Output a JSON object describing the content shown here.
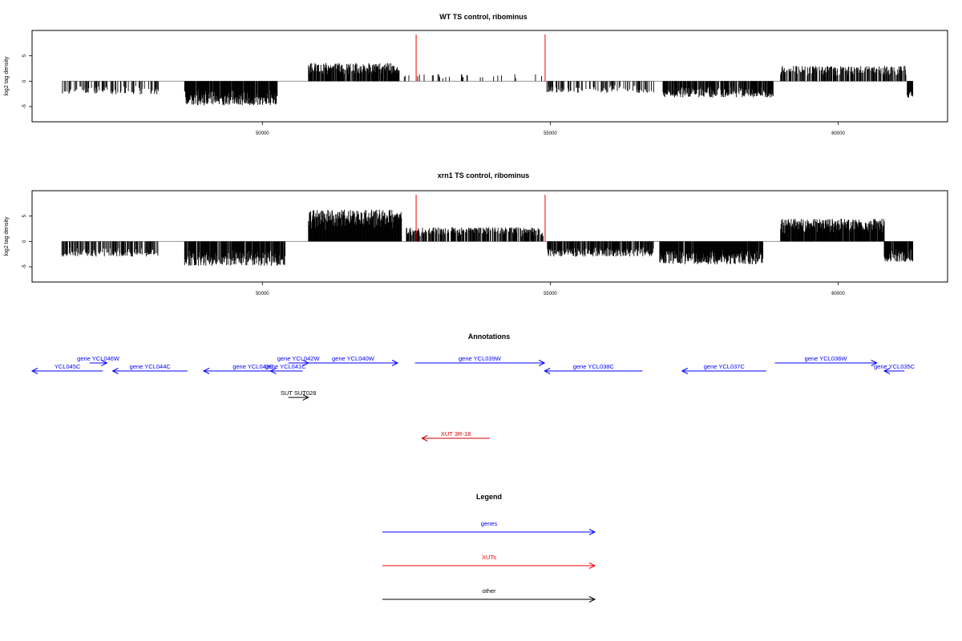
{
  "chart_data": [
    {
      "type": "bar",
      "title": "WT TS control, ribominus",
      "ylabel": "log2 tag density",
      "xlim": [
        46000,
        61900
      ],
      "ylim": [
        -8,
        10
      ],
      "x_ticks": [
        50000,
        55000,
        60000
      ],
      "y_ticks": [
        -5,
        0,
        5
      ],
      "markers": [
        52670,
        54910
      ],
      "marker_color": "#ff0000",
      "segments": [
        {
          "x0": 46520,
          "x1": 48200,
          "sign": -1,
          "amp": 2.6,
          "density": 0.35
        },
        {
          "x0": 48650,
          "x1": 50260,
          "sign": -1,
          "amp": 4.8,
          "density": 0.95
        },
        {
          "x0": 50800,
          "x1": 52380,
          "sign": 1,
          "amp": 3.6,
          "density": 0.9
        },
        {
          "x0": 52400,
          "x1": 54850,
          "sign": 1,
          "amp": 1.4,
          "density": 0.1
        },
        {
          "x0": 54940,
          "x1": 56800,
          "sign": -1,
          "amp": 2.3,
          "density": 0.35
        },
        {
          "x0": 56950,
          "x1": 58870,
          "sign": -1,
          "amp": 3.2,
          "density": 0.85
        },
        {
          "x0": 59000,
          "x1": 61200,
          "sign": 1,
          "amp": 3.0,
          "density": 0.65
        },
        {
          "x0": 61200,
          "x1": 61300,
          "sign": -1,
          "amp": 3.5,
          "density": 0.9
        }
      ]
    },
    {
      "type": "bar",
      "title": "xrn1 TS control, ribominus",
      "ylabel": "log2 tag density",
      "xlim": [
        46000,
        61900
      ],
      "ylim": [
        -8,
        10
      ],
      "x_ticks": [
        50000,
        55000,
        60000
      ],
      "y_ticks": [
        -5,
        0,
        5
      ],
      "markers": [
        52670,
        54910
      ],
      "marker_color": "#ff0000",
      "segments": [
        {
          "x0": 46520,
          "x1": 48200,
          "sign": -1,
          "amp": 3.0,
          "density": 0.55
        },
        {
          "x0": 48650,
          "x1": 50400,
          "sign": -1,
          "amp": 4.8,
          "density": 0.9
        },
        {
          "x0": 50800,
          "x1": 52420,
          "sign": 1,
          "amp": 6.3,
          "density": 1.0
        },
        {
          "x0": 52500,
          "x1": 54880,
          "sign": 1,
          "amp": 2.8,
          "density": 0.7
        },
        {
          "x0": 54950,
          "x1": 56800,
          "sign": -1,
          "amp": 3.0,
          "density": 0.8
        },
        {
          "x0": 56900,
          "x1": 58700,
          "sign": -1,
          "amp": 4.5,
          "density": 0.95
        },
        {
          "x0": 59000,
          "x1": 60800,
          "sign": 1,
          "amp": 4.5,
          "density": 0.95
        },
        {
          "x0": 60800,
          "x1": 61300,
          "sign": -1,
          "amp": 4.0,
          "density": 0.95
        }
      ]
    }
  ],
  "annotations": {
    "title": "Annotations",
    "features": [
      {
        "label": "YCL045C",
        "start": 46000,
        "end": 47230,
        "strand": "-",
        "color": "#0000ff",
        "row": 1
      },
      {
        "label": "gene YCL046W",
        "start": 47000,
        "end": 47300,
        "strand": "+",
        "color": "#0000ff",
        "row": 0
      },
      {
        "label": "gene YCL044C",
        "start": 47400,
        "end": 48700,
        "strand": "-",
        "color": "#0000ff",
        "row": 1
      },
      {
        "label": "gene YCL043C",
        "start": 48980,
        "end": 50700,
        "strand": "-",
        "color": "#0000ff",
        "row": 1
      },
      {
        "label": "gene YCL042W",
        "start": 50450,
        "end": 50800,
        "strand": "+",
        "color": "#0000ff",
        "row": 0
      },
      {
        "label": "gene YCL041C",
        "start": 50140,
        "end": 50660,
        "strand": "-",
        "color": "#0000ff",
        "row": 1
      },
      {
        "label": "gene YCL040W",
        "start": 50800,
        "end": 52350,
        "strand": "+",
        "color": "#0000ff",
        "row": 0
      },
      {
        "label": "gene YCL039W",
        "start": 52650,
        "end": 54900,
        "strand": "+",
        "color": "#0000ff",
        "row": 0
      },
      {
        "label": "gene YCL038C",
        "start": 54900,
        "end": 56600,
        "strand": "-",
        "color": "#0000ff",
        "row": 1
      },
      {
        "label": "gene YCL037C",
        "start": 57290,
        "end": 58750,
        "strand": "-",
        "color": "#0000ff",
        "row": 1
      },
      {
        "label": "gene YCL036W",
        "start": 58900,
        "end": 60670,
        "strand": "+",
        "color": "#0000ff",
        "row": 0
      },
      {
        "label": "gene YCL035C",
        "start": 60800,
        "end": 61150,
        "strand": "-",
        "color": "#0000ff",
        "row": 1
      },
      {
        "label": "SUT SUT028",
        "start": 50450,
        "end": 50800,
        "strand": "+",
        "color": "#000000",
        "row": 2
      },
      {
        "label": "XUT 3R-18",
        "start": 52770,
        "end": 53950,
        "strand": "-",
        "color": "#cc0000",
        "row": 3
      }
    ]
  },
  "legend": {
    "title": "Legend",
    "items": [
      {
        "label": "genes",
        "color": "#0000ff"
      },
      {
        "label": "XUTs",
        "color": "#ff0000"
      },
      {
        "label": "other",
        "color": "#000000"
      }
    ]
  }
}
